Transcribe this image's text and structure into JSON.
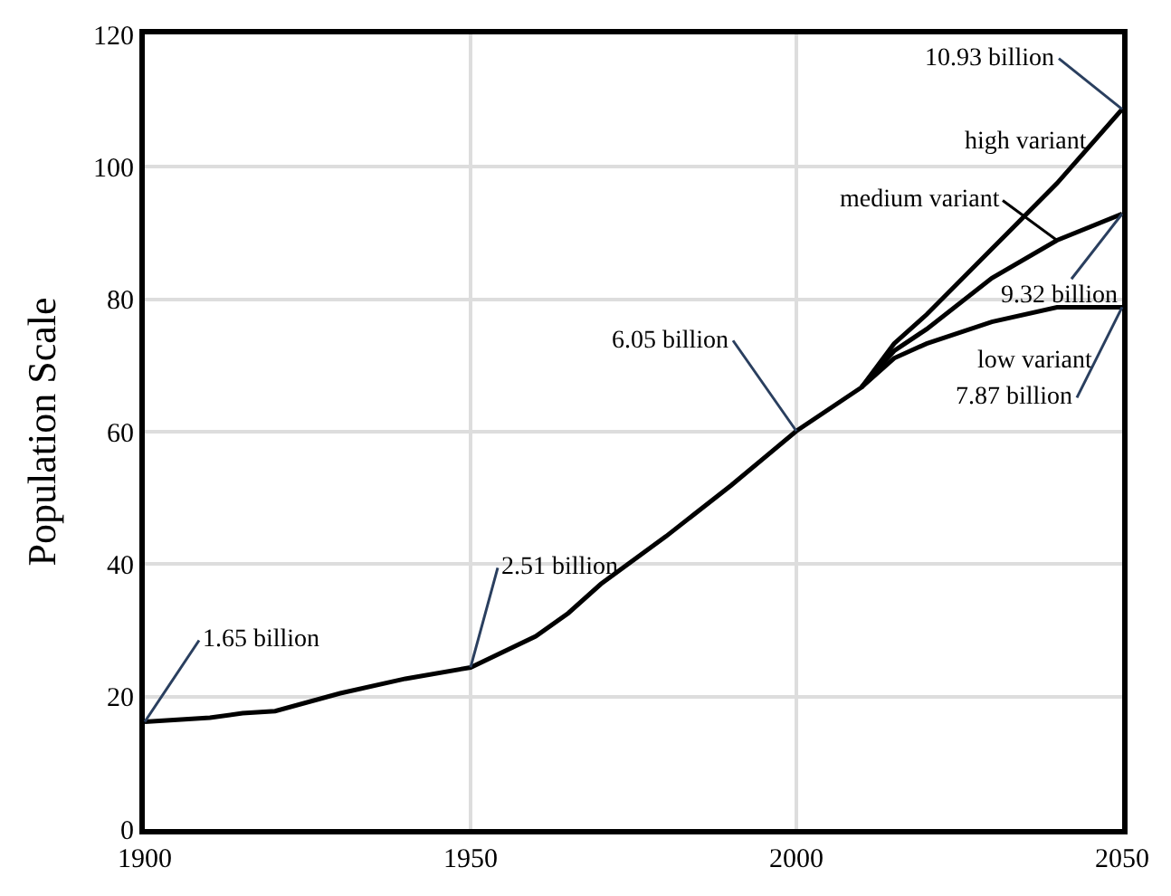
{
  "chart_data": {
    "type": "line",
    "ylabel": "Population Scale",
    "xlim": [
      1900,
      2050
    ],
    "ylim": [
      0,
      120
    ],
    "xticks": [
      1900,
      1950,
      2000,
      2050
    ],
    "yticks": [
      0,
      20,
      40,
      60,
      80,
      100,
      120
    ],
    "grid": true,
    "legend": false,
    "marker": "none",
    "line_style": "solid",
    "series": [
      {
        "name": "high variant",
        "color": "#000000",
        "x": [
          1900,
          1910,
          1915,
          1920,
          1930,
          1940,
          1950,
          1960,
          1965,
          1970,
          1980,
          1990,
          2000,
          2010,
          2015,
          2020,
          2030,
          2040,
          2050
        ],
        "values": [
          16.2,
          16.8,
          17.5,
          17.8,
          20.5,
          22.7,
          24.4,
          29.1,
          32.6,
          37.0,
          44.2,
          51.9,
          60.1,
          66.7,
          73.3,
          77.7,
          87.6,
          97.5,
          108.7
        ]
      },
      {
        "name": "medium variant",
        "color": "#000000",
        "x": [
          2010,
          2015,
          2020,
          2030,
          2040,
          2050
        ],
        "values": [
          66.7,
          72.2,
          75.5,
          83.2,
          88.9,
          92.9
        ]
      },
      {
        "name": "low variant",
        "color": "#000000",
        "x": [
          2010,
          2015,
          2020,
          2030,
          2040,
          2045,
          2050
        ],
        "values": [
          66.7,
          71.1,
          73.3,
          76.6,
          78.8,
          78.8,
          78.8
        ]
      }
    ],
    "annotations": [
      {
        "text": "1.65 billion",
        "x": 1900,
        "y": 16.2
      },
      {
        "text": "2.51 billion",
        "x": 1950,
        "y": 24.4
      },
      {
        "text": "6.05 billion",
        "x": 2000,
        "y": 60.1
      },
      {
        "text": "10.93 billion",
        "x": 2050,
        "y": 108.7
      },
      {
        "text": "9.32 billion",
        "x": 2050,
        "y": 92.9
      },
      {
        "text": "7.87 billion",
        "x": 2050,
        "y": 78.8
      }
    ]
  }
}
